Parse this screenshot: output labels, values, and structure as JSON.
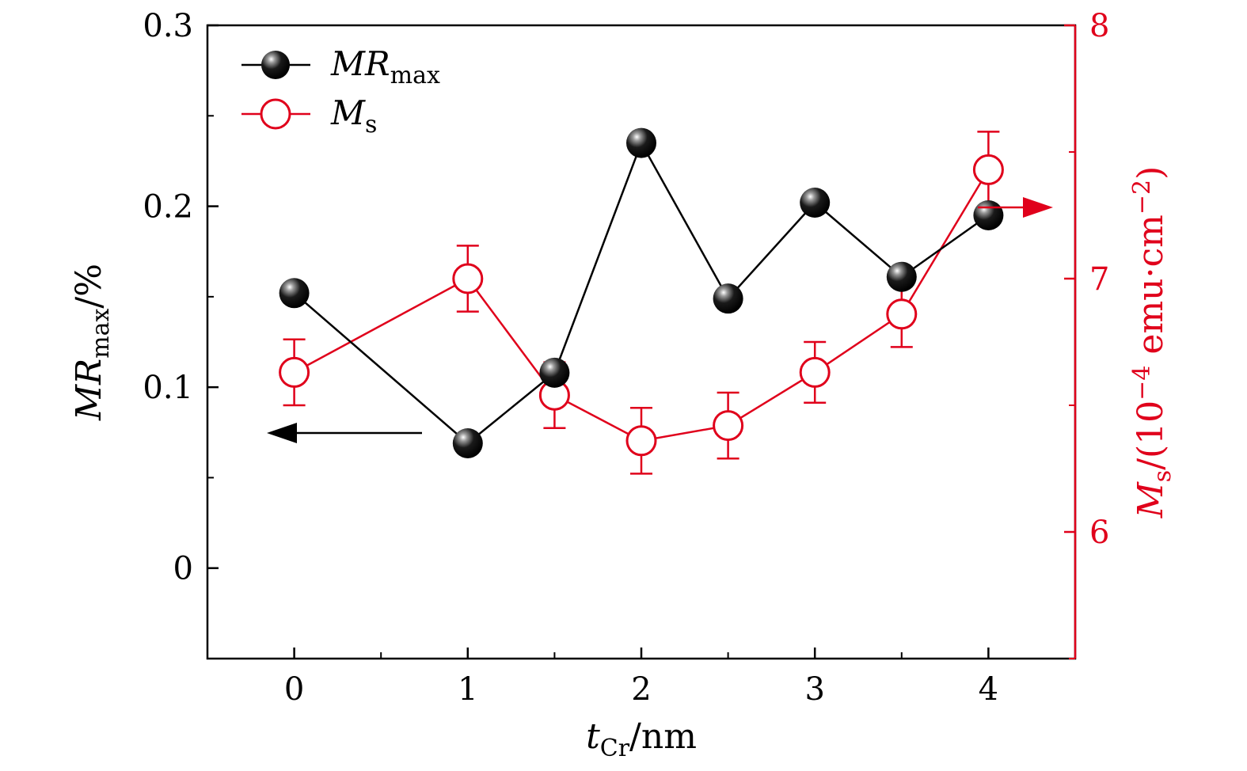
{
  "chart_data": {
    "type": "line",
    "x_axis": {
      "label_main": "t",
      "label_sub": "Cr",
      "label_unit": "/nm",
      "range": [
        -0.5,
        4.5
      ],
      "ticks": [
        0,
        1,
        2,
        3,
        4
      ],
      "tick_labels": [
        "0",
        "1",
        "2",
        "3",
        "4"
      ]
    },
    "y_axis_left": {
      "label_main": "MR",
      "label_sub": "max",
      "label_unit": "/%",
      "range": [
        -0.05,
        0.3
      ],
      "ticks": [
        0,
        0.1,
        0.2,
        0.3
      ],
      "tick_labels": [
        "0",
        "0.1",
        "0.2",
        "0.3"
      ],
      "color": "#000000"
    },
    "y_axis_right": {
      "label_main": "M",
      "label_sub": "s",
      "label_unit": "/(10",
      "label_exp1": "−4",
      "label_unit2": " emu·cm",
      "label_exp2": "−2",
      "label_close": ")",
      "range": [
        5.5,
        8
      ],
      "ticks": [
        6,
        7,
        8
      ],
      "tick_labels": [
        "6",
        "7",
        "8"
      ],
      "color": "#e0001b"
    },
    "grid": false,
    "legend": "top-left",
    "series": [
      {
        "name_main": "MR",
        "name_sub": "max",
        "axis": "left",
        "color": "#000000",
        "marker": "filled-sphere",
        "x": [
          0,
          1,
          1.5,
          2,
          2.5,
          3,
          3.5,
          4
        ],
        "y": [
          0.152,
          0.069,
          0.108,
          0.235,
          0.149,
          0.202,
          0.161,
          0.195
        ]
      },
      {
        "name_main": "M",
        "name_sub": "s",
        "axis": "right",
        "color": "#e0001b",
        "marker": "open-circle",
        "x": [
          0,
          1,
          1.5,
          2,
          2.5,
          3,
          3.5,
          4
        ],
        "y": [
          6.63,
          7.0,
          6.54,
          6.36,
          6.42,
          6.63,
          6.86,
          7.43
        ],
        "error": [
          0.13,
          0.13,
          0.13,
          0.13,
          0.13,
          0.12,
          0.13,
          0.15
        ]
      }
    ],
    "annotations": [
      {
        "type": "arrow",
        "direction": "left",
        "target_axis": "left",
        "color": "#000000"
      },
      {
        "type": "arrow",
        "direction": "right",
        "target_axis": "right",
        "color": "#e0001b"
      }
    ]
  }
}
